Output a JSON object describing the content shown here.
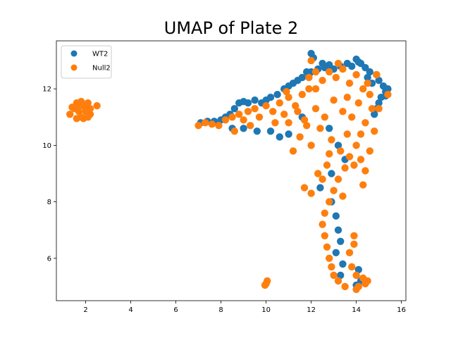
{
  "chart_data": {
    "type": "scatter",
    "title": "UMAP of Plate 2",
    "xlabel": "",
    "ylabel": "",
    "xlim": [
      0.7,
      16.2
    ],
    "ylim": [
      4.5,
      13.7
    ],
    "x_ticks": [
      2,
      4,
      6,
      8,
      10,
      12,
      14,
      16
    ],
    "y_ticks": [
      6,
      8,
      10,
      12
    ],
    "grid": false,
    "legend_position": "top-left",
    "series": [
      {
        "name": "WT2",
        "color": "#1f77b4",
        "points": [
          [
            12.0,
            13.25
          ],
          [
            12.1,
            13.1
          ],
          [
            14.0,
            13.05
          ],
          [
            14.1,
            12.95
          ],
          [
            14.4,
            12.75
          ],
          [
            14.6,
            12.6
          ],
          [
            14.9,
            12.5
          ],
          [
            15.0,
            12.3
          ],
          [
            15.2,
            12.1
          ],
          [
            15.3,
            11.9
          ],
          [
            15.1,
            11.7
          ],
          [
            15.0,
            11.5
          ],
          [
            14.9,
            11.3
          ],
          [
            14.8,
            11.1
          ],
          [
            14.7,
            12.2
          ],
          [
            14.5,
            12.4
          ],
          [
            13.8,
            12.8
          ],
          [
            13.6,
            12.9
          ],
          [
            13.3,
            12.8
          ],
          [
            13.0,
            12.7
          ],
          [
            12.8,
            12.85
          ],
          [
            12.5,
            12.9
          ],
          [
            12.3,
            12.7
          ],
          [
            12.0,
            12.6
          ],
          [
            11.8,
            12.6
          ],
          [
            11.6,
            12.4
          ],
          [
            11.4,
            12.3
          ],
          [
            11.2,
            12.2
          ],
          [
            11.0,
            12.1
          ],
          [
            10.8,
            12.0
          ],
          [
            10.5,
            11.8
          ],
          [
            10.2,
            11.7
          ],
          [
            10.0,
            11.6
          ],
          [
            9.8,
            11.5
          ],
          [
            9.5,
            11.6
          ],
          [
            9.2,
            11.5
          ],
          [
            9.0,
            11.55
          ],
          [
            8.8,
            11.5
          ],
          [
            8.6,
            11.3
          ],
          [
            8.4,
            11.1
          ],
          [
            8.2,
            11.0
          ],
          [
            8.0,
            10.9
          ],
          [
            7.7,
            10.85
          ],
          [
            7.4,
            10.85
          ],
          [
            7.1,
            10.8
          ],
          [
            8.5,
            10.6
          ],
          [
            9.0,
            10.6
          ],
          [
            9.6,
            10.5
          ],
          [
            10.2,
            10.5
          ],
          [
            10.6,
            10.3
          ],
          [
            11.0,
            10.4
          ],
          [
            11.6,
            11.0
          ],
          [
            12.8,
            10.6
          ],
          [
            13.2,
            10.0
          ],
          [
            13.5,
            9.5
          ],
          [
            12.9,
            9.0
          ],
          [
            12.4,
            8.5
          ],
          [
            12.9,
            8.0
          ],
          [
            13.1,
            7.5
          ],
          [
            13.2,
            7.0
          ],
          [
            13.3,
            6.6
          ],
          [
            13.1,
            6.2
          ],
          [
            13.4,
            5.8
          ],
          [
            13.3,
            5.4
          ],
          [
            14.1,
            5.6
          ],
          [
            14.2,
            5.2
          ],
          [
            14.0,
            5.05
          ],
          [
            15.3,
            11.75
          ],
          [
            15.4,
            12.0
          ],
          [
            14.2,
            12.9
          ],
          [
            12.6,
            12.75
          ],
          [
            11.9,
            12.5
          ]
        ]
      },
      {
        "name": "Null2",
        "color": "#ff7f0e",
        "points": [
          [
            1.3,
            11.1
          ],
          [
            1.5,
            11.3
          ],
          [
            1.6,
            11.5
          ],
          [
            1.7,
            11.2
          ],
          [
            1.8,
            11.0
          ],
          [
            1.9,
            11.4
          ],
          [
            2.0,
            11.2
          ],
          [
            2.1,
            11.5
          ],
          [
            2.2,
            11.1
          ],
          [
            1.6,
            10.95
          ],
          [
            1.9,
            10.95
          ],
          [
            2.5,
            11.4
          ],
          [
            1.4,
            11.35
          ],
          [
            2.2,
            11.3
          ],
          [
            1.7,
            11.4
          ],
          [
            2.0,
            11.35
          ],
          [
            1.8,
            11.55
          ],
          [
            2.1,
            11.0
          ],
          [
            7.0,
            10.7
          ],
          [
            7.3,
            10.8
          ],
          [
            7.6,
            10.75
          ],
          [
            7.9,
            10.7
          ],
          [
            8.2,
            10.9
          ],
          [
            8.5,
            11.0
          ],
          [
            8.8,
            11.1
          ],
          [
            9.0,
            10.9
          ],
          [
            9.2,
            11.2
          ],
          [
            9.5,
            11.3
          ],
          [
            9.7,
            11.0
          ],
          [
            10.0,
            11.4
          ],
          [
            10.3,
            11.2
          ],
          [
            10.6,
            11.5
          ],
          [
            10.8,
            11.1
          ],
          [
            11.0,
            11.7
          ],
          [
            11.3,
            11.4
          ],
          [
            11.6,
            11.8
          ],
          [
            11.9,
            12.0
          ],
          [
            12.0,
            13.0
          ],
          [
            12.2,
            12.6
          ],
          [
            12.5,
            12.3
          ],
          [
            12.8,
            12.6
          ],
          [
            13.1,
            12.4
          ],
          [
            13.4,
            12.7
          ],
          [
            13.7,
            12.2
          ],
          [
            14.0,
            12.5
          ],
          [
            14.3,
            12.0
          ],
          [
            14.6,
            11.8
          ],
          [
            14.9,
            12.5
          ],
          [
            15.4,
            11.8
          ],
          [
            14.7,
            11.3
          ],
          [
            14.4,
            10.8
          ],
          [
            14.2,
            10.4
          ],
          [
            14.0,
            10.0
          ],
          [
            13.7,
            9.6
          ],
          [
            13.5,
            9.2
          ],
          [
            13.2,
            8.8
          ],
          [
            13.0,
            8.4
          ],
          [
            12.8,
            8.0
          ],
          [
            12.6,
            7.6
          ],
          [
            12.5,
            7.2
          ],
          [
            12.6,
            6.8
          ],
          [
            12.7,
            6.4
          ],
          [
            12.8,
            6.0
          ],
          [
            12.9,
            5.7
          ],
          [
            13.0,
            5.4
          ],
          [
            13.2,
            5.2
          ],
          [
            13.5,
            5.0
          ],
          [
            13.8,
            5.7
          ],
          [
            13.7,
            6.2
          ],
          [
            13.9,
            6.5
          ],
          [
            14.0,
            5.4
          ],
          [
            14.1,
            5.0
          ],
          [
            14.3,
            5.3
          ],
          [
            14.4,
            5.1
          ],
          [
            14.5,
            5.2
          ],
          [
            14.0,
            4.9
          ],
          [
            11.7,
            8.5
          ],
          [
            12.0,
            8.3
          ],
          [
            12.3,
            9.0
          ],
          [
            12.7,
            9.3
          ],
          [
            13.3,
            9.8
          ],
          [
            12.9,
            10.2
          ],
          [
            12.4,
            10.6
          ],
          [
            12.0,
            10.0
          ],
          [
            11.5,
            10.3
          ],
          [
            11.2,
            9.8
          ],
          [
            11.0,
            10.8
          ],
          [
            11.4,
            11.2
          ],
          [
            11.8,
            10.7
          ],
          [
            12.2,
            11.3
          ],
          [
            12.6,
            11.0
          ],
          [
            13.0,
            11.6
          ],
          [
            13.4,
            11.2
          ],
          [
            13.8,
            11.0
          ],
          [
            14.1,
            11.5
          ],
          [
            13.6,
            10.4
          ],
          [
            13.9,
            9.3
          ],
          [
            14.2,
            9.5
          ],
          [
            14.4,
            9.1
          ],
          [
            14.3,
            8.6
          ],
          [
            14.6,
            9.8
          ],
          [
            10.0,
            5.1
          ],
          [
            10.05,
            5.2
          ],
          [
            9.95,
            5.05
          ],
          [
            13.9,
            6.8
          ],
          [
            12.8,
            9.7
          ],
          [
            12.5,
            8.8
          ],
          [
            13.4,
            8.2
          ],
          [
            11.9,
            12.4
          ],
          [
            10.9,
            11.9
          ],
          [
            10.4,
            10.8
          ],
          [
            9.3,
            10.7
          ],
          [
            8.6,
            10.5
          ],
          [
            11.7,
            10.9
          ],
          [
            12.2,
            12.0
          ],
          [
            13.2,
            12.9
          ],
          [
            13.6,
            11.7
          ],
          [
            14.5,
            12.2
          ],
          [
            15.0,
            11.3
          ],
          [
            14.8,
            10.5
          ]
        ]
      }
    ]
  }
}
